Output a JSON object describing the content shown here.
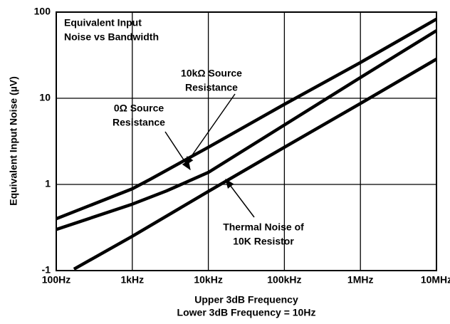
{
  "chart_data": {
    "type": "line",
    "annotations": [
      [
        "Equivalent Input",
        "Noise vs Bandwidth"
      ],
      [
        "10kΩ Source",
        "Resistance"
      ],
      [
        "0Ω Source",
        "Resistance"
      ],
      [
        "Thermal Noise of",
        "10K Resistor"
      ]
    ],
    "xlabel": [
      "Upper 3dB Frequency",
      "Lower 3dB Frequency = 10Hz"
    ],
    "ylabel": "Equivalent Input Noise (µV)",
    "xscale": "log",
    "yscale": "log",
    "grid": true,
    "xlim": [
      100,
      10000000
    ],
    "xticks": [
      {
        "value": 100,
        "label": "100Hz"
      },
      {
        "value": 1000,
        "label": "1kHz"
      },
      {
        "value": 10000,
        "label": "10kHz"
      },
      {
        "value": 100000,
        "label": "100kHz"
      },
      {
        "value": 1000000,
        "label": "1MHz"
      },
      {
        "value": 10000000,
        "label": "10MHz"
      }
    ],
    "ylim": [
      0.1,
      100
    ],
    "yticks": [
      {
        "value": 0.1,
        "label": "-1"
      },
      1,
      10,
      100
    ],
    "series": [
      {
        "color": "#000000",
        "x": [
          100,
          1000,
          1700,
          10000,
          100000,
          1000000,
          10000000
        ],
        "values": [
          0.4,
          0.89,
          1.14,
          2.7,
          8.5,
          26,
          83
        ]
      },
      {
        "color": "#000000",
        "x": [
          100,
          1000,
          2800,
          10000,
          100000,
          1000000,
          10000000
        ],
        "values": [
          0.3,
          0.59,
          0.84,
          1.38,
          4.9,
          17.4,
          61
        ]
      },
      {
        "color": "#000000",
        "x": [
          171,
          1000,
          10000,
          100000,
          1000000,
          10000000
        ],
        "values": [
          0.104,
          0.25,
          0.83,
          2.7,
          8.7,
          28.5
        ]
      }
    ]
  }
}
